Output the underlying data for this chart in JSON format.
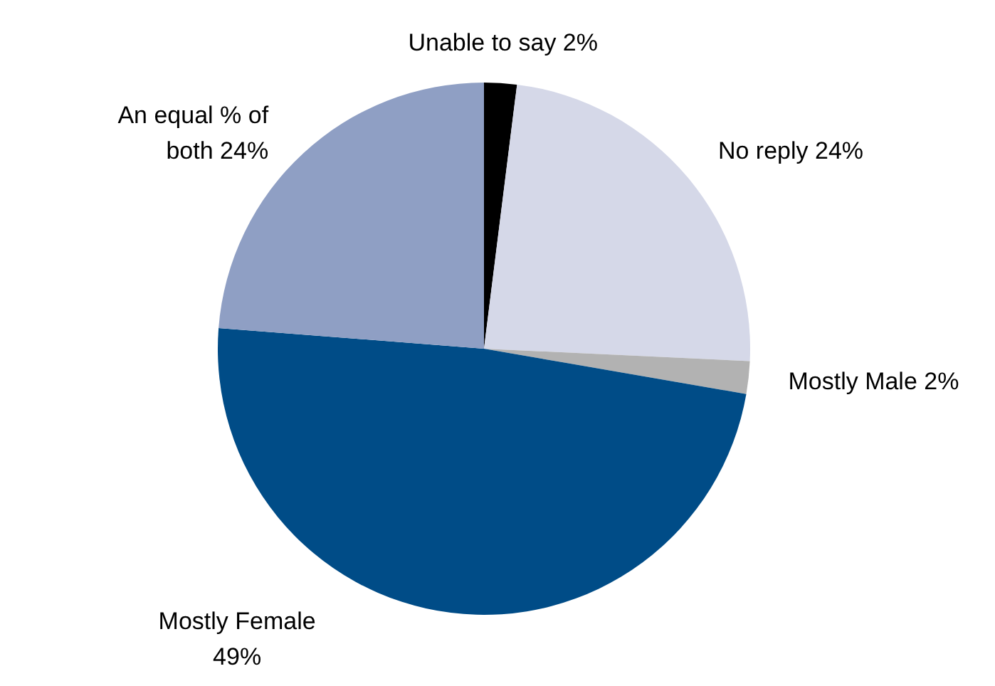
{
  "chart_data": {
    "type": "pie",
    "categories": [
      "Unable to say",
      "No reply",
      "Mostly Male",
      "Mostly Female",
      "An equal % of both"
    ],
    "values": [
      2,
      24,
      2,
      49,
      24
    ],
    "colors": [
      "#000000",
      "#d5d8e8",
      "#b2b2b2",
      "#004c87",
      "#8f9fc4"
    ],
    "value_labels": [
      "2%",
      "24%",
      "2%",
      "49%",
      "24%"
    ]
  }
}
